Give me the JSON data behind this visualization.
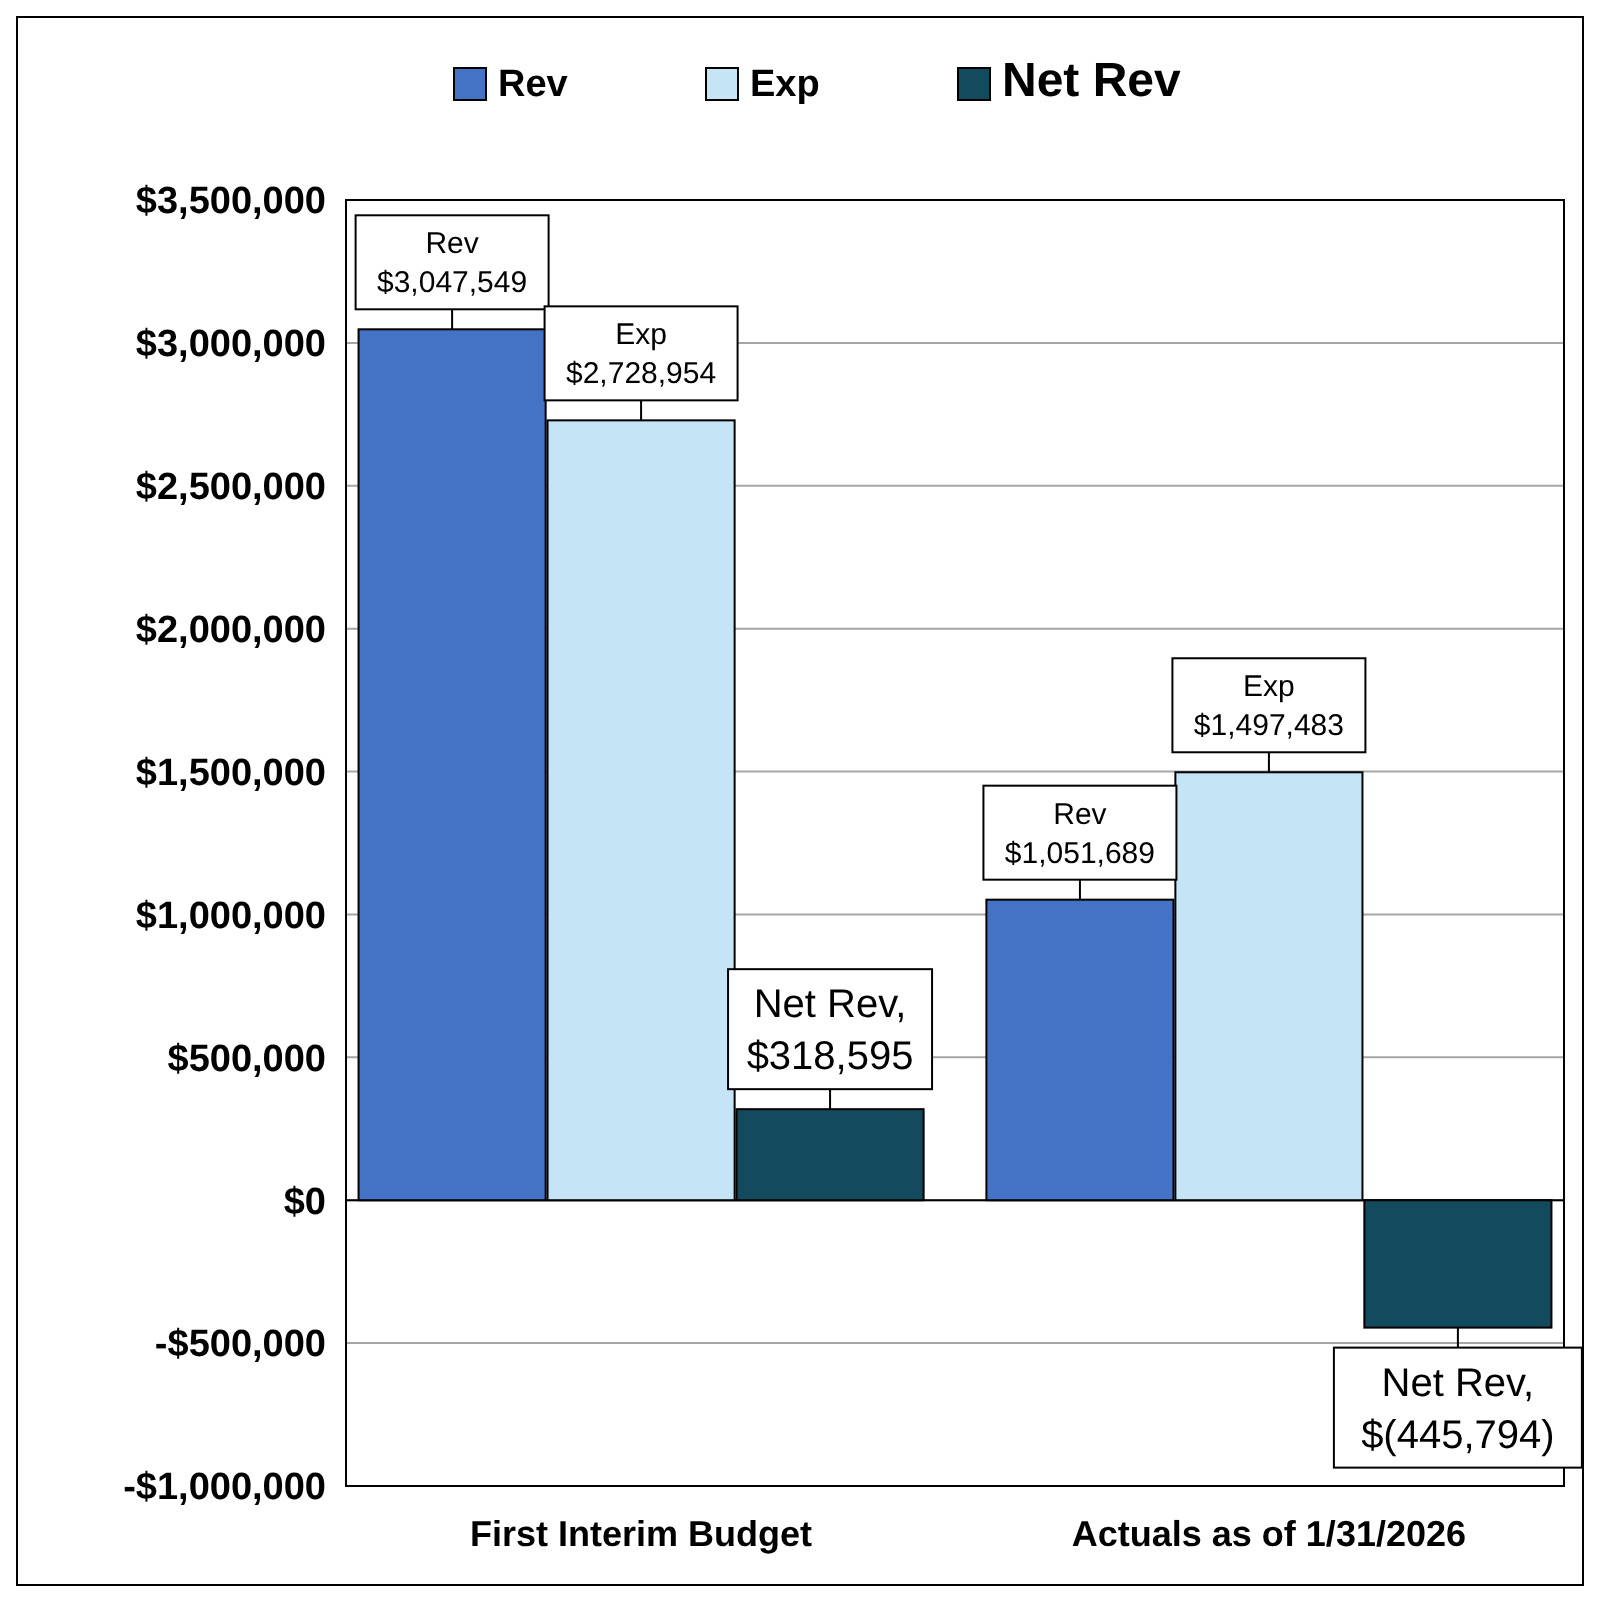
{
  "chart_data": {
    "type": "bar",
    "categories": [
      "First Interim Budget",
      "Actuals as of 1/31/2026"
    ],
    "series": [
      {
        "name": "Rev",
        "color": "#4472c4",
        "values": [
          3047549,
          1051689
        ],
        "value_labels": [
          "Rev\n$3,047,549",
          "Rev\n$1,051,689"
        ]
      },
      {
        "name": "Exp",
        "color": "#c5e4f5",
        "values": [
          2728954,
          1497483
        ],
        "value_labels": [
          "Exp\n$2,728,954",
          "Exp\n$1,497,483"
        ]
      },
      {
        "name": "Net Rev",
        "color": "#134a5e",
        "values": [
          318595,
          -445794
        ],
        "value_labels": [
          "Net Rev,\n$318,595",
          "Net Rev,\n$(445,794)"
        ]
      }
    ],
    "ylim": [
      -1000000,
      3500000
    ],
    "yticks": [
      {
        "value": -1000000,
        "label": "-$1,000,000"
      },
      {
        "value": -500000,
        "label": "-$500,000"
      },
      {
        "value": 0,
        "label": "$0"
      },
      {
        "value": 500000,
        "label": "$500,000"
      },
      {
        "value": 1000000,
        "label": "$1,000,000"
      },
      {
        "value": 1500000,
        "label": "$1,500,000"
      },
      {
        "value": 2000000,
        "label": "$2,000,000"
      },
      {
        "value": 2500000,
        "label": "$2,500,000"
      },
      {
        "value": 3000000,
        "label": "$3,000,000"
      },
      {
        "value": 3500000,
        "label": "$3,500,000"
      }
    ],
    "grid": "y",
    "legend": "top"
  }
}
